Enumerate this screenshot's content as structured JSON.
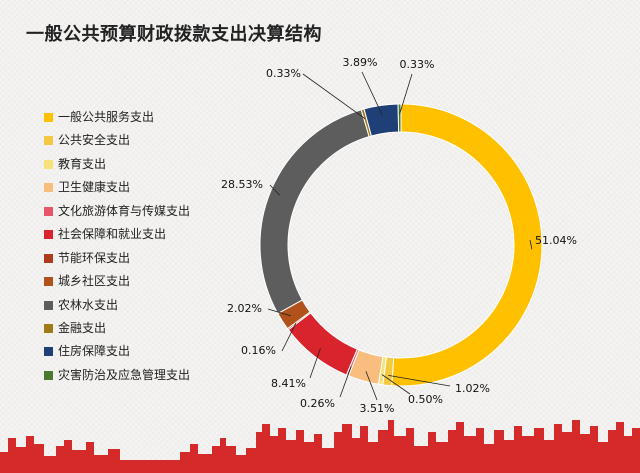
{
  "chart_data": {
    "type": "pie",
    "donut": true,
    "title": "一般公共预算财政拨款支出决算结构",
    "legend_position": "left",
    "categories": [
      "一般公共服务支出",
      "公共安全支出",
      "教育支出",
      "卫生健康支出",
      "文化旅游体育与传媒支出",
      "社会保障和就业支出",
      "节能环保支出",
      "城乡社区支出",
      "农林水支出",
      "金融支出",
      "住房保障支出",
      "灾害防治及应急管理支出"
    ],
    "values": [
      51.04,
      1.02,
      0.5,
      3.51,
      0.26,
      8.41,
      0.16,
      2.02,
      28.53,
      0.33,
      3.89,
      0.33
    ],
    "labels": [
      "51.04%",
      "1.02%",
      "0.50%",
      "3.51%",
      "0.26%",
      "8.41%",
      "0.16%",
      "2.02%",
      "28.53%",
      "0.33%",
      "3.89%",
      "0.33%"
    ],
    "colors": [
      "#ffc000",
      "#f5c842",
      "#f7e27a",
      "#f9bd7d",
      "#e8556a",
      "#d9242e",
      "#b03a1c",
      "#b0521a",
      "#5d5d5d",
      "#a07a16",
      "#1f3f77",
      "#4a7a2c"
    ]
  }
}
